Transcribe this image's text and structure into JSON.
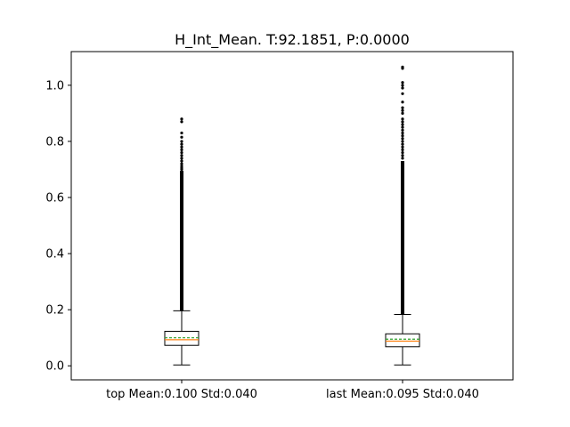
{
  "chart_data": {
    "type": "boxplot",
    "title": "H_Int_Mean. T:92.1851, P:0.0000",
    "xlabel": "",
    "ylabel": "",
    "ylim": [
      -0.05,
      1.12
    ],
    "yticks": [
      0.0,
      0.2,
      0.4,
      0.6,
      0.8,
      1.0
    ],
    "ytick_labels": [
      "0.0",
      "0.2",
      "0.4",
      "0.6",
      "0.8",
      "1.0"
    ],
    "categories": [
      "top Mean:0.100 Std:0.040",
      "last Mean:0.095 Std:0.040"
    ],
    "boxes": [
      {
        "whisker_low": 0.003,
        "q1": 0.073,
        "median": 0.093,
        "mean": 0.1,
        "q3": 0.123,
        "whisker_high": 0.196,
        "outlier_range": [
          0.196,
          0.695
        ],
        "sparse_outliers": [
          0.7,
          0.705,
          0.712,
          0.72,
          0.73,
          0.74,
          0.75,
          0.76,
          0.77,
          0.78,
          0.79,
          0.8,
          0.815,
          0.83,
          0.87,
          0.88
        ]
      },
      {
        "whisker_low": 0.003,
        "q1": 0.068,
        "median": 0.088,
        "mean": 0.095,
        "q3": 0.114,
        "whisker_high": 0.183,
        "outlier_range": [
          0.183,
          0.73
        ],
        "sparse_outliers": [
          0.74,
          0.75,
          0.76,
          0.77,
          0.78,
          0.79,
          0.8,
          0.81,
          0.82,
          0.83,
          0.84,
          0.85,
          0.86,
          0.87,
          0.88,
          0.9,
          0.91,
          0.92,
          0.94,
          0.97,
          0.99,
          1.0,
          1.01,
          1.06,
          1.065
        ]
      }
    ],
    "colors": {
      "box": "#000000",
      "median": "#ff7f0e",
      "mean": "#2ca02c",
      "outlier": "#000000"
    },
    "grid": false
  }
}
